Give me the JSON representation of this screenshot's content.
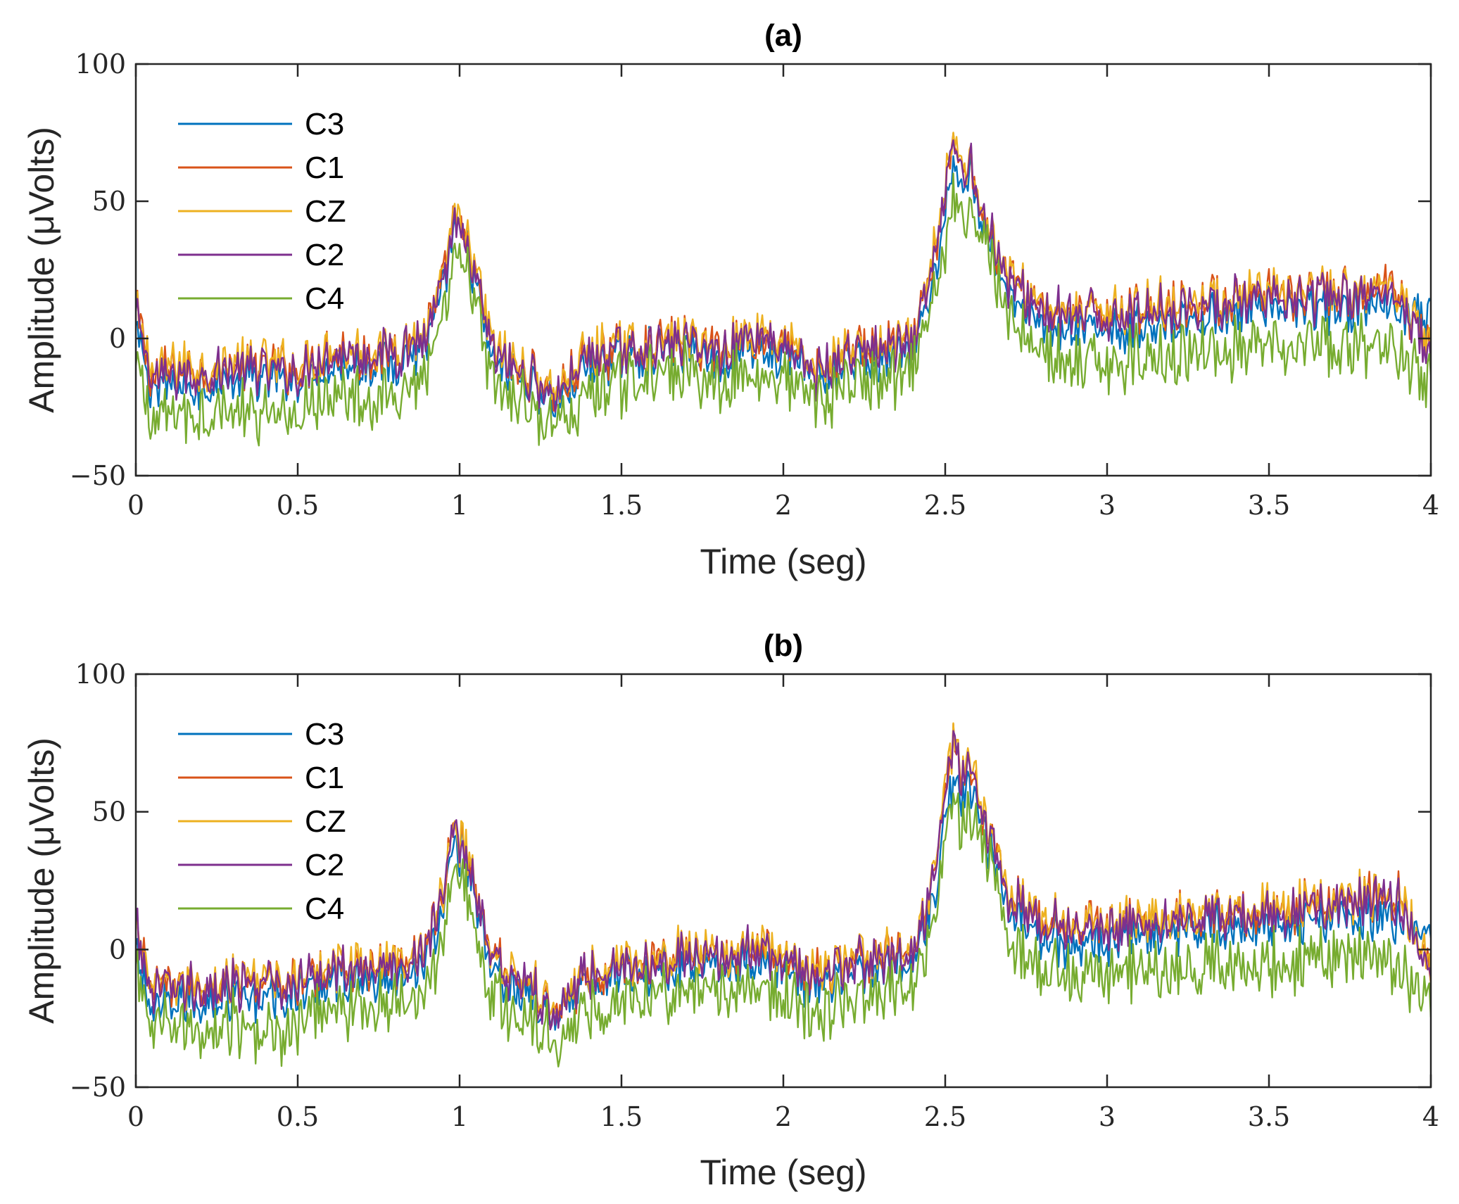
{
  "chart_data": [
    {
      "type": "line",
      "title": "(a)",
      "xlabel": "Time (seg)",
      "ylabel": "Amplitude (μVolts)",
      "xlim": [
        0,
        4
      ],
      "ylim": [
        -50,
        100
      ],
      "xticks": [
        "0",
        "0.5",
        "1",
        "1.5",
        "2",
        "2.5",
        "3",
        "3.5",
        "4"
      ],
      "yticks": [
        "100",
        "50",
        "0",
        "−50"
      ],
      "grid": false,
      "legend": "top-left",
      "series": [
        {
          "name": "C3",
          "color": "#0072BD",
          "x": [
            0,
            0.05,
            0.1,
            0.2,
            0.3,
            0.4,
            0.5,
            0.6,
            0.7,
            0.8,
            0.9,
            0.95,
            0.98,
            1.0,
            1.03,
            1.1,
            1.2,
            1.3,
            1.4,
            1.5,
            1.6,
            1.7,
            1.8,
            1.9,
            2.0,
            2.1,
            2.2,
            2.3,
            2.4,
            2.45,
            2.5,
            2.53,
            2.55,
            2.58,
            2.62,
            2.7,
            2.8,
            2.9,
            3.0,
            3.1,
            3.2,
            3.3,
            3.4,
            3.5,
            3.6,
            3.7,
            3.8,
            3.9,
            4.0
          ],
          "y": [
            5,
            -20,
            -18,
            -17,
            -15,
            -16,
            -15,
            -8,
            -10,
            -8,
            -2,
            15,
            42,
            35,
            30,
            -8,
            -15,
            -22,
            -10,
            -6,
            -5,
            -4,
            -8,
            -3,
            -6,
            -15,
            -8,
            -8,
            -5,
            12,
            45,
            62,
            55,
            60,
            42,
            15,
            6,
            2,
            4,
            5,
            7,
            8,
            9,
            10,
            10,
            11,
            11,
            12,
            8
          ]
        },
        {
          "name": "C1",
          "color": "#D95319",
          "x": [
            0,
            0.05,
            0.1,
            0.2,
            0.3,
            0.4,
            0.5,
            0.6,
            0.7,
            0.8,
            0.9,
            0.95,
            0.98,
            1.0,
            1.03,
            1.1,
            1.2,
            1.3,
            1.4,
            1.5,
            1.6,
            1.7,
            1.8,
            1.9,
            2.0,
            2.1,
            2.2,
            2.3,
            2.4,
            2.45,
            2.5,
            2.53,
            2.55,
            2.58,
            2.62,
            2.7,
            2.8,
            2.9,
            3.0,
            3.1,
            3.2,
            3.3,
            3.4,
            3.5,
            3.6,
            3.7,
            3.8,
            3.9,
            4.0
          ],
          "y": [
            10,
            -14,
            -12,
            -12,
            -10,
            -10,
            -12,
            -4,
            -6,
            -4,
            2,
            20,
            45,
            38,
            33,
            -4,
            -12,
            -20,
            -6,
            -4,
            -2,
            0,
            -4,
            2,
            -2,
            -12,
            -4,
            -4,
            -2,
            18,
            55,
            72,
            62,
            65,
            45,
            20,
            12,
            8,
            10,
            11,
            12,
            13,
            14,
            15,
            15,
            16,
            16,
            18,
            -6
          ]
        },
        {
          "name": "CZ",
          "color": "#EDB120",
          "x": [
            0,
            0.05,
            0.1,
            0.2,
            0.3,
            0.4,
            0.5,
            0.6,
            0.7,
            0.8,
            0.9,
            0.95,
            0.98,
            1.0,
            1.03,
            1.1,
            1.2,
            1.3,
            1.4,
            1.5,
            1.6,
            1.7,
            1.8,
            1.9,
            2.0,
            2.1,
            2.2,
            2.3,
            2.4,
            2.45,
            2.5,
            2.53,
            2.55,
            2.58,
            2.62,
            2.7,
            2.8,
            2.9,
            3.0,
            3.1,
            3.2,
            3.3,
            3.4,
            3.5,
            3.6,
            3.7,
            3.8,
            3.9,
            4.0
          ],
          "y": [
            11,
            -13,
            -11,
            -11,
            -9,
            -9,
            -11,
            -3,
            -5,
            -3,
            3,
            21,
            46,
            39,
            34,
            -3,
            -11,
            -19,
            -5,
            -3,
            -1,
            1,
            -3,
            3,
            -1,
            -11,
            -3,
            -3,
            -1,
            19,
            56,
            74,
            63,
            66,
            46,
            21,
            13,
            9,
            11,
            12,
            13,
            14,
            15,
            16,
            16,
            17,
            17,
            19,
            -5
          ]
        },
        {
          "name": "C2",
          "color": "#7E2F8E",
          "x": [
            0,
            0.05,
            0.1,
            0.2,
            0.3,
            0.4,
            0.5,
            0.6,
            0.7,
            0.8,
            0.9,
            0.95,
            0.98,
            1.0,
            1.03,
            1.1,
            1.2,
            1.3,
            1.4,
            1.5,
            1.6,
            1.7,
            1.8,
            1.9,
            2.0,
            2.1,
            2.2,
            2.3,
            2.4,
            2.45,
            2.5,
            2.53,
            2.55,
            2.58,
            2.62,
            2.7,
            2.8,
            2.9,
            3.0,
            3.1,
            3.2,
            3.3,
            3.4,
            3.5,
            3.6,
            3.7,
            3.8,
            3.9,
            4.0
          ],
          "y": [
            10,
            -15,
            -13,
            -13,
            -11,
            -11,
            -13,
            -5,
            -7,
            -5,
            1,
            19,
            44,
            37,
            32,
            -5,
            -13,
            -21,
            -7,
            -5,
            -3,
            -1,
            -5,
            1,
            -3,
            -13,
            -5,
            -5,
            -3,
            17,
            54,
            73,
            61,
            64,
            44,
            19,
            11,
            7,
            9,
            10,
            11,
            12,
            13,
            14,
            14,
            15,
            15,
            17,
            -7
          ]
        },
        {
          "name": "C4",
          "color": "#77AC30",
          "x": [
            0,
            0.05,
            0.1,
            0.2,
            0.3,
            0.4,
            0.5,
            0.6,
            0.7,
            0.8,
            0.9,
            0.95,
            0.98,
            1.0,
            1.03,
            1.1,
            1.2,
            1.3,
            1.4,
            1.5,
            1.6,
            1.7,
            1.8,
            1.9,
            2.0,
            2.1,
            2.2,
            2.3,
            2.4,
            2.45,
            2.5,
            2.53,
            2.55,
            2.58,
            2.62,
            2.7,
            2.8,
            2.9,
            3.0,
            3.1,
            3.2,
            3.3,
            3.4,
            3.5,
            3.6,
            3.7,
            3.8,
            3.9,
            4.0
          ],
          "y": [
            -10,
            -30,
            -28,
            -27,
            -26,
            -30,
            -28,
            -18,
            -22,
            -20,
            -12,
            5,
            28,
            25,
            22,
            -18,
            -24,
            -32,
            -20,
            -16,
            -14,
            -12,
            -16,
            -12,
            -14,
            -24,
            -16,
            -16,
            -12,
            5,
            35,
            52,
            45,
            48,
            40,
            5,
            -5,
            -10,
            -8,
            -7,
            -6,
            -5,
            -5,
            -4,
            -4,
            -3,
            -3,
            -4,
            -18
          ]
        }
      ]
    },
    {
      "type": "line",
      "title": "(b)",
      "xlabel": "Time (seg)",
      "ylabel": "Amplitude (μVolts)",
      "xlim": [
        0,
        4
      ],
      "ylim": [
        -50,
        100
      ],
      "xticks": [
        "0",
        "0.5",
        "1",
        "1.5",
        "2",
        "2.5",
        "3",
        "3.5",
        "4"
      ],
      "yticks": [
        "100",
        "50",
        "0",
        "−50"
      ],
      "grid": false,
      "legend": "top-left",
      "series": [
        {
          "name": "C3",
          "color": "#0072BD",
          "x": [
            0,
            0.05,
            0.1,
            0.2,
            0.3,
            0.4,
            0.5,
            0.6,
            0.7,
            0.8,
            0.9,
            0.95,
            0.98,
            1.0,
            1.03,
            1.1,
            1.2,
            1.3,
            1.4,
            1.5,
            1.6,
            1.7,
            1.8,
            1.9,
            2.0,
            2.1,
            2.2,
            2.3,
            2.4,
            2.45,
            2.5,
            2.53,
            2.55,
            2.58,
            2.62,
            2.7,
            2.8,
            2.9,
            3.0,
            3.1,
            3.2,
            3.3,
            3.4,
            3.5,
            3.6,
            3.7,
            3.8,
            3.9,
            4.0
          ],
          "y": [
            0,
            -22,
            -20,
            -19,
            -18,
            -18,
            -16,
            -10,
            -12,
            -10,
            -4,
            14,
            44,
            36,
            30,
            -8,
            -16,
            -24,
            -12,
            -8,
            -6,
            -5,
            -8,
            -4,
            -6,
            -14,
            -8,
            -8,
            -5,
            12,
            46,
            62,
            56,
            60,
            42,
            14,
            6,
            2,
            4,
            5,
            7,
            8,
            9,
            10,
            10,
            11,
            11,
            12,
            6
          ]
        },
        {
          "name": "C1",
          "color": "#D95319",
          "x": [
            0,
            0.05,
            0.1,
            0.2,
            0.3,
            0.4,
            0.5,
            0.6,
            0.7,
            0.8,
            0.9,
            0.95,
            0.98,
            1.0,
            1.03,
            1.1,
            1.2,
            1.3,
            1.4,
            1.5,
            1.6,
            1.7,
            1.8,
            1.9,
            2.0,
            2.1,
            2.2,
            2.3,
            2.4,
            2.45,
            2.5,
            2.53,
            2.55,
            2.58,
            2.62,
            2.7,
            2.8,
            2.9,
            3.0,
            3.1,
            3.2,
            3.3,
            3.4,
            3.5,
            3.6,
            3.7,
            3.8,
            3.9,
            4.0
          ],
          "y": [
            8,
            -16,
            -14,
            -13,
            -12,
            -12,
            -12,
            -6,
            -7,
            -5,
            1,
            20,
            48,
            39,
            33,
            -4,
            -12,
            -22,
            -8,
            -5,
            -3,
            -1,
            -4,
            1,
            -2,
            -10,
            -4,
            -4,
            -1,
            18,
            56,
            76,
            64,
            66,
            46,
            20,
            12,
            8,
            10,
            11,
            12,
            13,
            14,
            15,
            15,
            17,
            18,
            20,
            -8
          ]
        },
        {
          "name": "CZ",
          "color": "#EDB120",
          "x": [
            0,
            0.05,
            0.1,
            0.2,
            0.3,
            0.4,
            0.5,
            0.6,
            0.7,
            0.8,
            0.9,
            0.95,
            0.98,
            1.0,
            1.03,
            1.1,
            1.2,
            1.3,
            1.4,
            1.5,
            1.6,
            1.7,
            1.8,
            1.9,
            2.0,
            2.1,
            2.2,
            2.3,
            2.4,
            2.45,
            2.5,
            2.53,
            2.55,
            2.58,
            2.62,
            2.7,
            2.8,
            2.9,
            3.0,
            3.1,
            3.2,
            3.3,
            3.4,
            3.5,
            3.6,
            3.7,
            3.8,
            3.9,
            4.0
          ],
          "y": [
            9,
            -15,
            -13,
            -12,
            -11,
            -11,
            -11,
            -5,
            -6,
            -4,
            2,
            21,
            49,
            40,
            34,
            -3,
            -11,
            -21,
            -7,
            -4,
            -2,
            0,
            -3,
            2,
            -1,
            -9,
            -3,
            -3,
            0,
            19,
            57,
            78,
            65,
            67,
            47,
            21,
            13,
            9,
            11,
            12,
            13,
            14,
            15,
            16,
            16,
            18,
            19,
            21,
            -7
          ]
        },
        {
          "name": "C2",
          "color": "#7E2F8E",
          "x": [
            0,
            0.05,
            0.1,
            0.2,
            0.3,
            0.4,
            0.5,
            0.6,
            0.7,
            0.8,
            0.9,
            0.95,
            0.98,
            1.0,
            1.03,
            1.1,
            1.2,
            1.3,
            1.4,
            1.5,
            1.6,
            1.7,
            1.8,
            1.9,
            2.0,
            2.1,
            2.2,
            2.3,
            2.4,
            2.45,
            2.5,
            2.53,
            2.55,
            2.58,
            2.62,
            2.7,
            2.8,
            2.9,
            3.0,
            3.1,
            3.2,
            3.3,
            3.4,
            3.5,
            3.6,
            3.7,
            3.8,
            3.9,
            4.0
          ],
          "y": [
            8,
            -17,
            -15,
            -14,
            -13,
            -13,
            -13,
            -7,
            -8,
            -6,
            0,
            19,
            48,
            38,
            32,
            -5,
            -13,
            -23,
            -9,
            -6,
            -4,
            -2,
            -5,
            0,
            -3,
            -11,
            -5,
            -5,
            -2,
            17,
            55,
            77,
            63,
            65,
            45,
            19,
            11,
            7,
            9,
            10,
            11,
            12,
            13,
            14,
            14,
            16,
            17,
            19,
            -9
          ]
        },
        {
          "name": "C4",
          "color": "#77AC30",
          "x": [
            0,
            0.05,
            0.1,
            0.2,
            0.3,
            0.4,
            0.5,
            0.6,
            0.7,
            0.8,
            0.9,
            0.95,
            0.98,
            1.0,
            1.03,
            1.1,
            1.2,
            1.3,
            1.4,
            1.5,
            1.6,
            1.7,
            1.8,
            1.9,
            2.0,
            2.1,
            2.2,
            2.3,
            2.4,
            2.45,
            2.5,
            2.53,
            2.55,
            2.58,
            2.62,
            2.7,
            2.8,
            2.9,
            3.0,
            3.1,
            3.2,
            3.3,
            3.4,
            3.5,
            3.6,
            3.7,
            3.8,
            3.9,
            4.0
          ],
          "y": [
            -8,
            -30,
            -28,
            -28,
            -27,
            -30,
            -28,
            -20,
            -22,
            -20,
            -14,
            4,
            30,
            26,
            20,
            -18,
            -26,
            -34,
            -22,
            -18,
            -16,
            -14,
            -18,
            -14,
            -16,
            -24,
            -18,
            -18,
            -14,
            4,
            36,
            54,
            46,
            48,
            40,
            4,
            -6,
            -10,
            -8,
            -7,
            -6,
            -6,
            -5,
            -5,
            -4,
            -3,
            -3,
            -4,
            -20
          ]
        }
      ]
    }
  ]
}
